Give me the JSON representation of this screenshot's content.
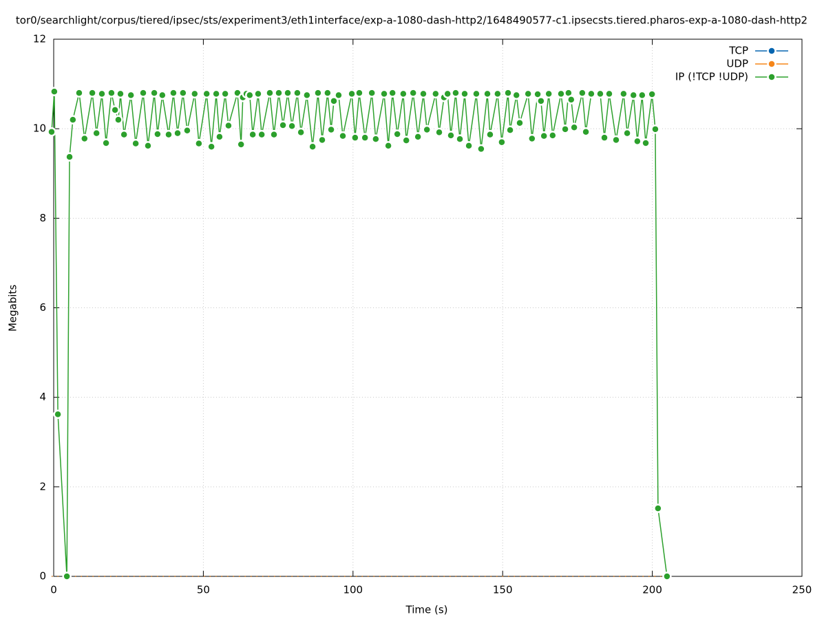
{
  "chart_data": {
    "type": "line",
    "title": "tor0/searchlight/corpus/tiered/ipsec/sts/experiment3/eth1interface/exp-a-1080-dash-http2/1648490577-c1.ipsecsts.tiered.pharos-exp-a-1080-dash-http2",
    "x_label": "Time (s)",
    "y_label": "Megabits",
    "xlim": [
      0,
      250
    ],
    "xticks": [
      0,
      50,
      100,
      150,
      200,
      250
    ],
    "ylim": [
      0,
      12
    ],
    "yticks": [
      0,
      2,
      4,
      6,
      8,
      10,
      12
    ],
    "grid": true,
    "legend": "top-right",
    "x": [
      -0.7,
      0.2,
      1.4,
      4.4,
      5.3,
      6.4,
      8.5,
      10.3,
      12.9,
      14.3,
      16.1,
      17.5,
      19.3,
      20.5,
      21.6,
      22.3,
      23.5,
      25.8,
      27.4,
      29.9,
      31.5,
      33.6,
      34.7,
      36.3,
      38.4,
      40.0,
      41.4,
      43.2,
      44.6,
      47.1,
      48.5,
      51.1,
      52.7,
      54.3,
      55.4,
      57.3,
      58.4,
      61.4,
      62.6,
      63.2,
      64.4,
      65.5,
      66.5,
      68.3,
      69.5,
      72.2,
      73.6,
      75.2,
      76.6,
      78.2,
      79.6,
      81.4,
      82.6,
      84.6,
      86.5,
      88.3,
      89.7,
      91.5,
      92.7,
      93.6,
      95.2,
      96.6,
      99.6,
      100.7,
      102.1,
      104.0,
      106.3,
      107.6,
      110.4,
      111.8,
      113.2,
      114.8,
      116.8,
      117.8,
      120.1,
      121.7,
      123.5,
      124.7,
      127.6,
      128.8,
      130.4,
      131.6,
      132.7,
      134.3,
      135.7,
      137.3,
      138.7,
      141.2,
      142.8,
      144.9,
      145.8,
      148.3,
      149.7,
      151.8,
      152.5,
      154.6,
      155.7,
      158.5,
      159.8,
      161.7,
      162.8,
      163.8,
      165.4,
      166.7,
      169.5,
      170.9,
      172.0,
      172.9,
      173.9,
      176.6,
      177.8,
      179.6,
      182.6,
      184.0,
      185.6,
      187.9,
      190.4,
      191.6,
      193.7,
      195.0,
      196.6,
      197.8,
      199.9,
      201.0,
      201.9,
      204.9
    ],
    "series": [
      {
        "name": "TCP",
        "color": "#0565b0",
        "values": [
          0,
          0,
          0,
          0,
          0,
          0,
          0,
          0,
          0,
          0,
          0,
          0,
          0,
          0,
          0,
          0,
          0,
          0,
          0,
          0,
          0,
          0,
          0,
          0,
          0,
          0,
          0,
          0,
          0,
          0,
          0,
          0,
          0,
          0,
          0,
          0,
          0,
          0,
          0,
          0,
          0,
          0,
          0,
          0,
          0,
          0,
          0,
          0,
          0,
          0,
          0,
          0,
          0,
          0,
          0,
          0,
          0,
          0,
          0,
          0,
          0,
          0,
          0,
          0,
          0,
          0,
          0,
          0,
          0,
          0,
          0,
          0,
          0,
          0,
          0,
          0,
          0,
          0,
          0,
          0,
          0,
          0,
          0,
          0,
          0,
          0,
          0,
          0,
          0,
          0,
          0,
          0,
          0,
          0,
          0,
          0,
          0,
          0,
          0,
          0,
          0,
          0,
          0,
          0,
          0,
          0,
          0,
          0,
          0,
          0,
          0,
          0,
          0,
          0,
          0,
          0,
          0,
          0,
          0,
          0,
          0,
          0,
          0,
          0,
          0,
          0
        ]
      },
      {
        "name": "UDP",
        "color": "#f58518",
        "values": [
          0,
          0,
          0,
          0,
          0,
          0,
          0,
          0,
          0,
          0,
          0,
          0,
          0,
          0,
          0,
          0,
          0,
          0,
          0,
          0,
          0,
          0,
          0,
          0,
          0,
          0,
          0,
          0,
          0,
          0,
          0,
          0,
          0,
          0,
          0,
          0,
          0,
          0,
          0,
          0,
          0,
          0,
          0,
          0,
          0,
          0,
          0,
          0,
          0,
          0,
          0,
          0,
          0,
          0,
          0,
          0,
          0,
          0,
          0,
          0,
          0,
          0,
          0,
          0,
          0,
          0,
          0,
          0,
          0,
          0,
          0,
          0,
          0,
          0,
          0,
          0,
          0,
          0,
          0,
          0,
          0,
          0,
          0,
          0,
          0,
          0,
          0,
          0,
          0,
          0,
          0,
          0,
          0,
          0,
          0,
          0,
          0,
          0,
          0,
          0,
          0,
          0,
          0,
          0,
          0,
          0,
          0,
          0,
          0,
          0,
          0,
          0,
          0,
          0,
          0,
          0,
          0,
          0,
          0,
          0,
          0,
          0,
          0,
          0,
          0,
          0
        ]
      },
      {
        "name": "IP (!TCP  !UDP)",
        "color": "#2ca02c",
        "values": [
          9.93,
          10.83,
          3.62,
          0,
          9.37,
          10.2,
          10.8,
          9.78,
          10.8,
          9.9,
          10.78,
          9.68,
          10.8,
          10.42,
          10.2,
          10.78,
          9.87,
          10.75,
          9.67,
          10.8,
          9.62,
          10.8,
          9.88,
          10.75,
          9.87,
          10.8,
          9.9,
          10.8,
          9.96,
          10.78,
          9.67,
          10.78,
          9.6,
          10.78,
          9.82,
          10.78,
          10.07,
          10.8,
          9.65,
          10.7,
          10.78,
          10.75,
          9.87,
          10.78,
          9.87,
          10.8,
          9.87,
          10.8,
          10.08,
          10.8,
          10.06,
          10.8,
          9.92,
          10.75,
          9.6,
          10.8,
          9.75,
          10.8,
          9.98,
          10.62,
          10.75,
          9.84,
          10.78,
          9.8,
          10.8,
          9.8,
          10.8,
          9.77,
          10.78,
          9.62,
          10.8,
          9.88,
          10.78,
          9.74,
          10.8,
          9.82,
          10.78,
          9.98,
          10.78,
          9.92,
          10.7,
          10.78,
          9.85,
          10.8,
          9.77,
          10.78,
          9.62,
          10.78,
          9.55,
          10.78,
          9.87,
          10.78,
          9.7,
          10.8,
          9.97,
          10.75,
          10.13,
          10.78,
          9.78,
          10.77,
          10.62,
          9.84,
          10.78,
          9.85,
          10.78,
          9.99,
          10.8,
          10.65,
          10.03,
          10.8,
          9.93,
          10.78,
          10.78,
          9.8,
          10.78,
          9.75,
          10.78,
          9.9,
          10.75,
          9.72,
          10.75,
          9.68,
          10.77,
          9.99,
          1.52,
          0
        ]
      }
    ]
  }
}
